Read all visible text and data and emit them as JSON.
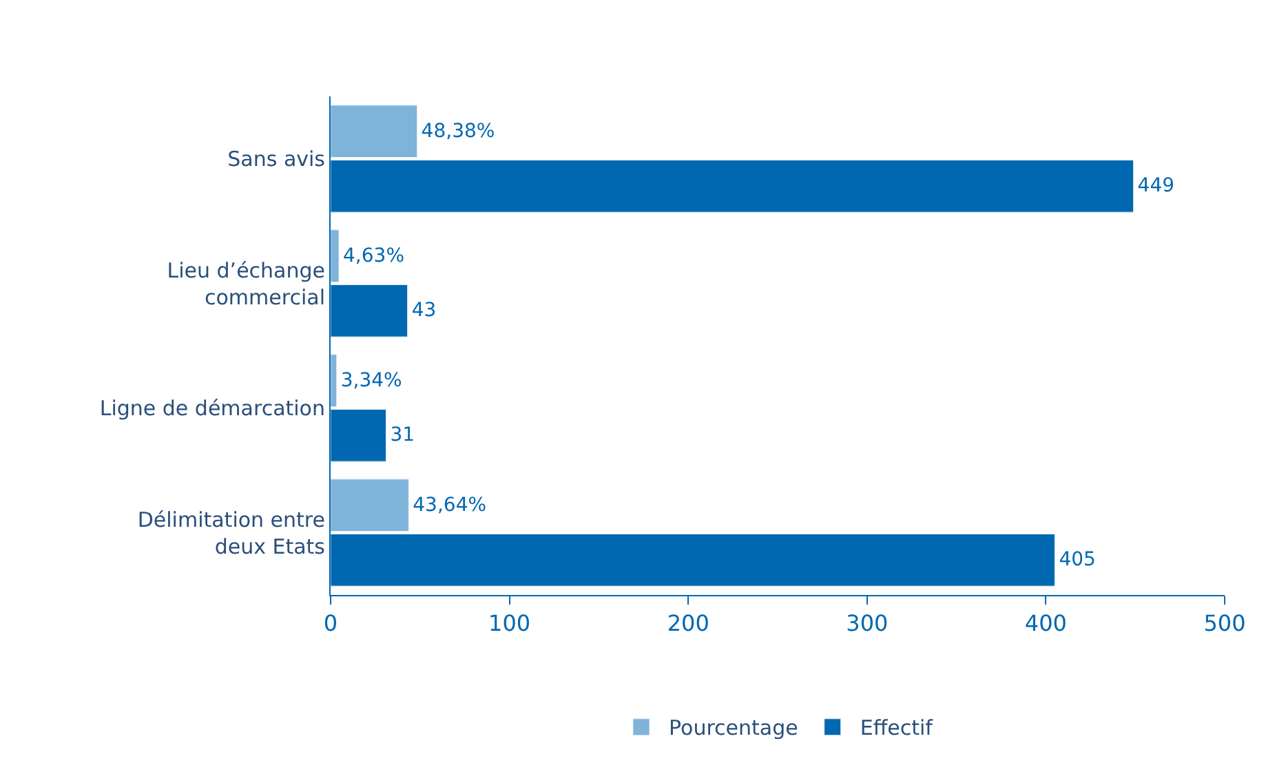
{
  "chart_data": {
    "type": "bar",
    "orientation": "horizontal",
    "categories": [
      "Sans avis",
      "Lieu d’échange\ncommercial",
      "Ligne de démarcation",
      "Délimitation entre\ndeux Etats"
    ],
    "series": [
      {
        "name": "Pourcentage",
        "color": "#7fb3d9",
        "values": [
          48.38,
          4.63,
          3.34,
          43.64
        ],
        "value_labels": [
          "48,38%",
          "4,63%",
          "3,34%",
          "43,64%"
        ]
      },
      {
        "name": "Effectif",
        "color": "#0068b1",
        "values": [
          449,
          43,
          31,
          405
        ],
        "value_labels": [
          "449",
          "43",
          "31",
          "405"
        ]
      }
    ],
    "xlim": [
      0,
      500
    ],
    "xticks": [
      0,
      100,
      200,
      300,
      400,
      500
    ],
    "legend": "bottom"
  }
}
